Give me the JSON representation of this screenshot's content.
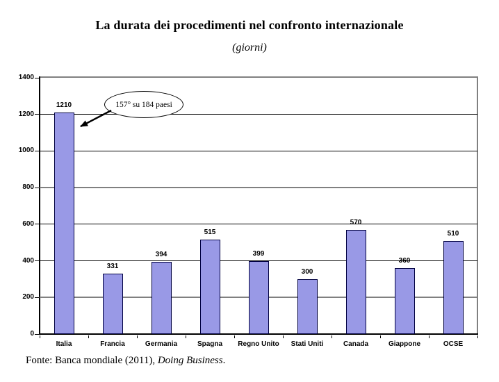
{
  "page": {
    "title": "La durata dei procedimenti nel confronto internazionale",
    "subtitle": "(giorni)"
  },
  "chart_data": {
    "type": "bar",
    "title": "La durata dei procedimenti nel confronto internazionale",
    "subtitle": "(giorni)",
    "categories": [
      "Italia",
      "Francia",
      "Germania",
      "Spagna",
      "Regno Unito",
      "Stati Uniti",
      "Canada",
      "Giappone",
      "OCSE"
    ],
    "values": [
      1210,
      331,
      394,
      515,
      399,
      300,
      570,
      360,
      510
    ],
    "xlabel": "",
    "ylabel": "",
    "ylim": [
      0,
      1400
    ],
    "yticks": [
      0,
      200,
      400,
      600,
      800,
      1000,
      1200,
      1400
    ],
    "grid": true,
    "legend": false,
    "annotation": "157° su 184 paesi",
    "bar_color": "#9999E6",
    "bar_border_color": "#000040",
    "grid_color_thin": "#000000",
    "grid_color_thick": "#808080",
    "thick_gridlines": [
      200,
      800
    ],
    "frame_color": "#808080",
    "source": "Fonte: Banca mondiale (2011), Doing Business."
  },
  "footer": {
    "prefix": "Fonte: Banca mondiale (2011), ",
    "italic_text": "Doing Business",
    "suffix": "."
  }
}
